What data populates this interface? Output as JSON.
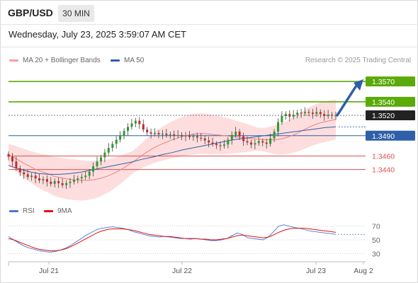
{
  "header": {
    "symbol": "GBP/USD",
    "timeframe": "30 MIN",
    "datetime": "Wednesday, July 23, 2025 3:59:07 AM CET"
  },
  "legend": {
    "ma20": "MA 20 + Bollinger Bands",
    "ma50": "MA 50",
    "credit": "Research © 2025 Trading Central"
  },
  "colors": {
    "green": "#5aaa0a",
    "blue": "#2f5fa8",
    "red": "#e05050",
    "bollinger": "#fcd2d2",
    "candle_up": "#2f9a2f",
    "candle_down": "#c62a2a",
    "rsi": "#4a78d0",
    "rsi_ma": "#dd1111",
    "last_price_box": "#222222"
  },
  "chart_data": [
    {
      "type": "candlestick",
      "title": "GBP/USD",
      "timeframe": "30 MIN",
      "ylim": [
        1.34,
        1.359
      ],
      "x_tick_labels": [
        "Jul 21",
        "Jul 22",
        "Jul 23",
        "Aug 2"
      ],
      "levels": [
        {
          "value": 1.357,
          "label": "1.3570",
          "kind": "target"
        },
        {
          "value": 1.354,
          "label": "1.3540",
          "kind": "resistance"
        },
        {
          "value": 1.352,
          "label": "1.3520",
          "kind": "last"
        },
        {
          "value": 1.349,
          "label": "1.3490",
          "kind": "pivot"
        },
        {
          "value": 1.346,
          "label": "1.3460",
          "kind": "support"
        },
        {
          "value": 1.344,
          "label": "1.3440",
          "kind": "support"
        }
      ],
      "close": [
        1.3459,
        1.3452,
        1.3442,
        1.3436,
        1.3433,
        1.3429,
        1.3431,
        1.3427,
        1.3424,
        1.3426,
        1.3422,
        1.3419,
        1.3423,
        1.342,
        1.3417,
        1.342,
        1.3422,
        1.3425,
        1.3427,
        1.3429,
        1.3431,
        1.3437,
        1.3445,
        1.3452,
        1.3458,
        1.3465,
        1.3472,
        1.3478,
        1.3484,
        1.349,
        1.3497,
        1.3503,
        1.3508,
        1.3512,
        1.3507,
        1.3499,
        1.3495,
        1.3493,
        1.3494,
        1.3492,
        1.3493,
        1.3491,
        1.3492,
        1.349,
        1.3491,
        1.3489,
        1.349,
        1.3488,
        1.3489,
        1.3487,
        1.3486,
        1.3483,
        1.348,
        1.3478,
        1.3476,
        1.3475,
        1.3477,
        1.3484,
        1.3491,
        1.3496,
        1.3489,
        1.3482,
        1.348,
        1.3477,
        1.3479,
        1.3482,
        1.348,
        1.3478,
        1.3486,
        1.3496,
        1.351,
        1.3519,
        1.3522,
        1.3518,
        1.3521,
        1.3524,
        1.3523,
        1.3525,
        1.3524,
        1.3522,
        1.3525,
        1.3522,
        1.3519,
        1.3521,
        1.352,
        1.352
      ],
      "ma20": [
        1.3462,
        1.3457,
        1.3451,
        1.3446,
        1.3441,
        1.3437,
        1.3434,
        1.343,
        1.3428,
        1.3426,
        1.3425,
        1.3424,
        1.3424,
        1.3425,
        1.3427,
        1.343,
        1.3434,
        1.3439,
        1.3445,
        1.3451,
        1.3458,
        1.3465,
        1.3471,
        1.3476,
        1.348,
        1.3484,
        1.3487,
        1.349,
        1.3492,
        1.3493,
        1.3493,
        1.3492,
        1.3491,
        1.349,
        1.3489,
        1.3488,
        1.3487,
        1.3486,
        1.3485,
        1.3484,
        1.3484,
        1.3484,
        1.3486,
        1.3489,
        1.3493,
        1.3498,
        1.3503,
        1.3507,
        1.351,
        1.3512,
        1.3514
      ],
      "ma50": [
        1.3446,
        1.3441,
        1.3437,
        1.3434,
        1.3433,
        1.3433,
        1.3434,
        1.3436,
        1.3439,
        1.3442,
        1.3445,
        1.3448,
        1.3451,
        1.3455,
        1.3458,
        1.3462,
        1.3465,
        1.3469,
        1.3472,
        1.3475,
        1.3478,
        1.3481,
        1.3484,
        1.3486,
        1.3488,
        1.349,
        1.3492,
        1.3494,
        1.3496,
        1.3498,
        1.35,
        1.3502,
        1.3503
      ],
      "series": [
        {
          "name": "MA 20 + Bollinger Bands"
        },
        {
          "name": "MA 50"
        }
      ]
    },
    {
      "type": "line",
      "ylim": [
        20,
        80
      ],
      "y_ticks": [
        70,
        50,
        30
      ],
      "series": [
        {
          "name": "RSI",
          "values": [
            55,
            50,
            45,
            41,
            38,
            36,
            34,
            33,
            32,
            33,
            35,
            38,
            42,
            47,
            52,
            57,
            61,
            65,
            67,
            68,
            69,
            68,
            67,
            65,
            62,
            60,
            58,
            56,
            55,
            54,
            55,
            54,
            53,
            52,
            52,
            51,
            52,
            51,
            50,
            49,
            49,
            50,
            52,
            56,
            60,
            58,
            53,
            52,
            51,
            50,
            54,
            62,
            70,
            72,
            70,
            68,
            67,
            65,
            63,
            62,
            61,
            60,
            59,
            58
          ]
        },
        {
          "name": "9MA",
          "values": [
            52,
            50,
            47,
            44,
            41,
            38,
            36,
            35,
            34,
            34,
            35,
            37,
            40,
            44,
            48,
            52,
            56,
            60,
            63,
            65,
            66,
            66,
            66,
            65,
            64,
            62,
            60,
            58,
            57,
            56,
            55,
            55,
            54,
            53,
            52,
            52,
            52,
            51,
            51,
            50,
            50,
            51,
            52,
            54,
            56,
            57,
            56,
            55,
            54,
            53,
            54,
            57,
            61,
            64,
            66,
            67,
            67,
            67,
            66,
            65,
            64,
            63,
            62,
            61
          ]
        }
      ]
    }
  ]
}
